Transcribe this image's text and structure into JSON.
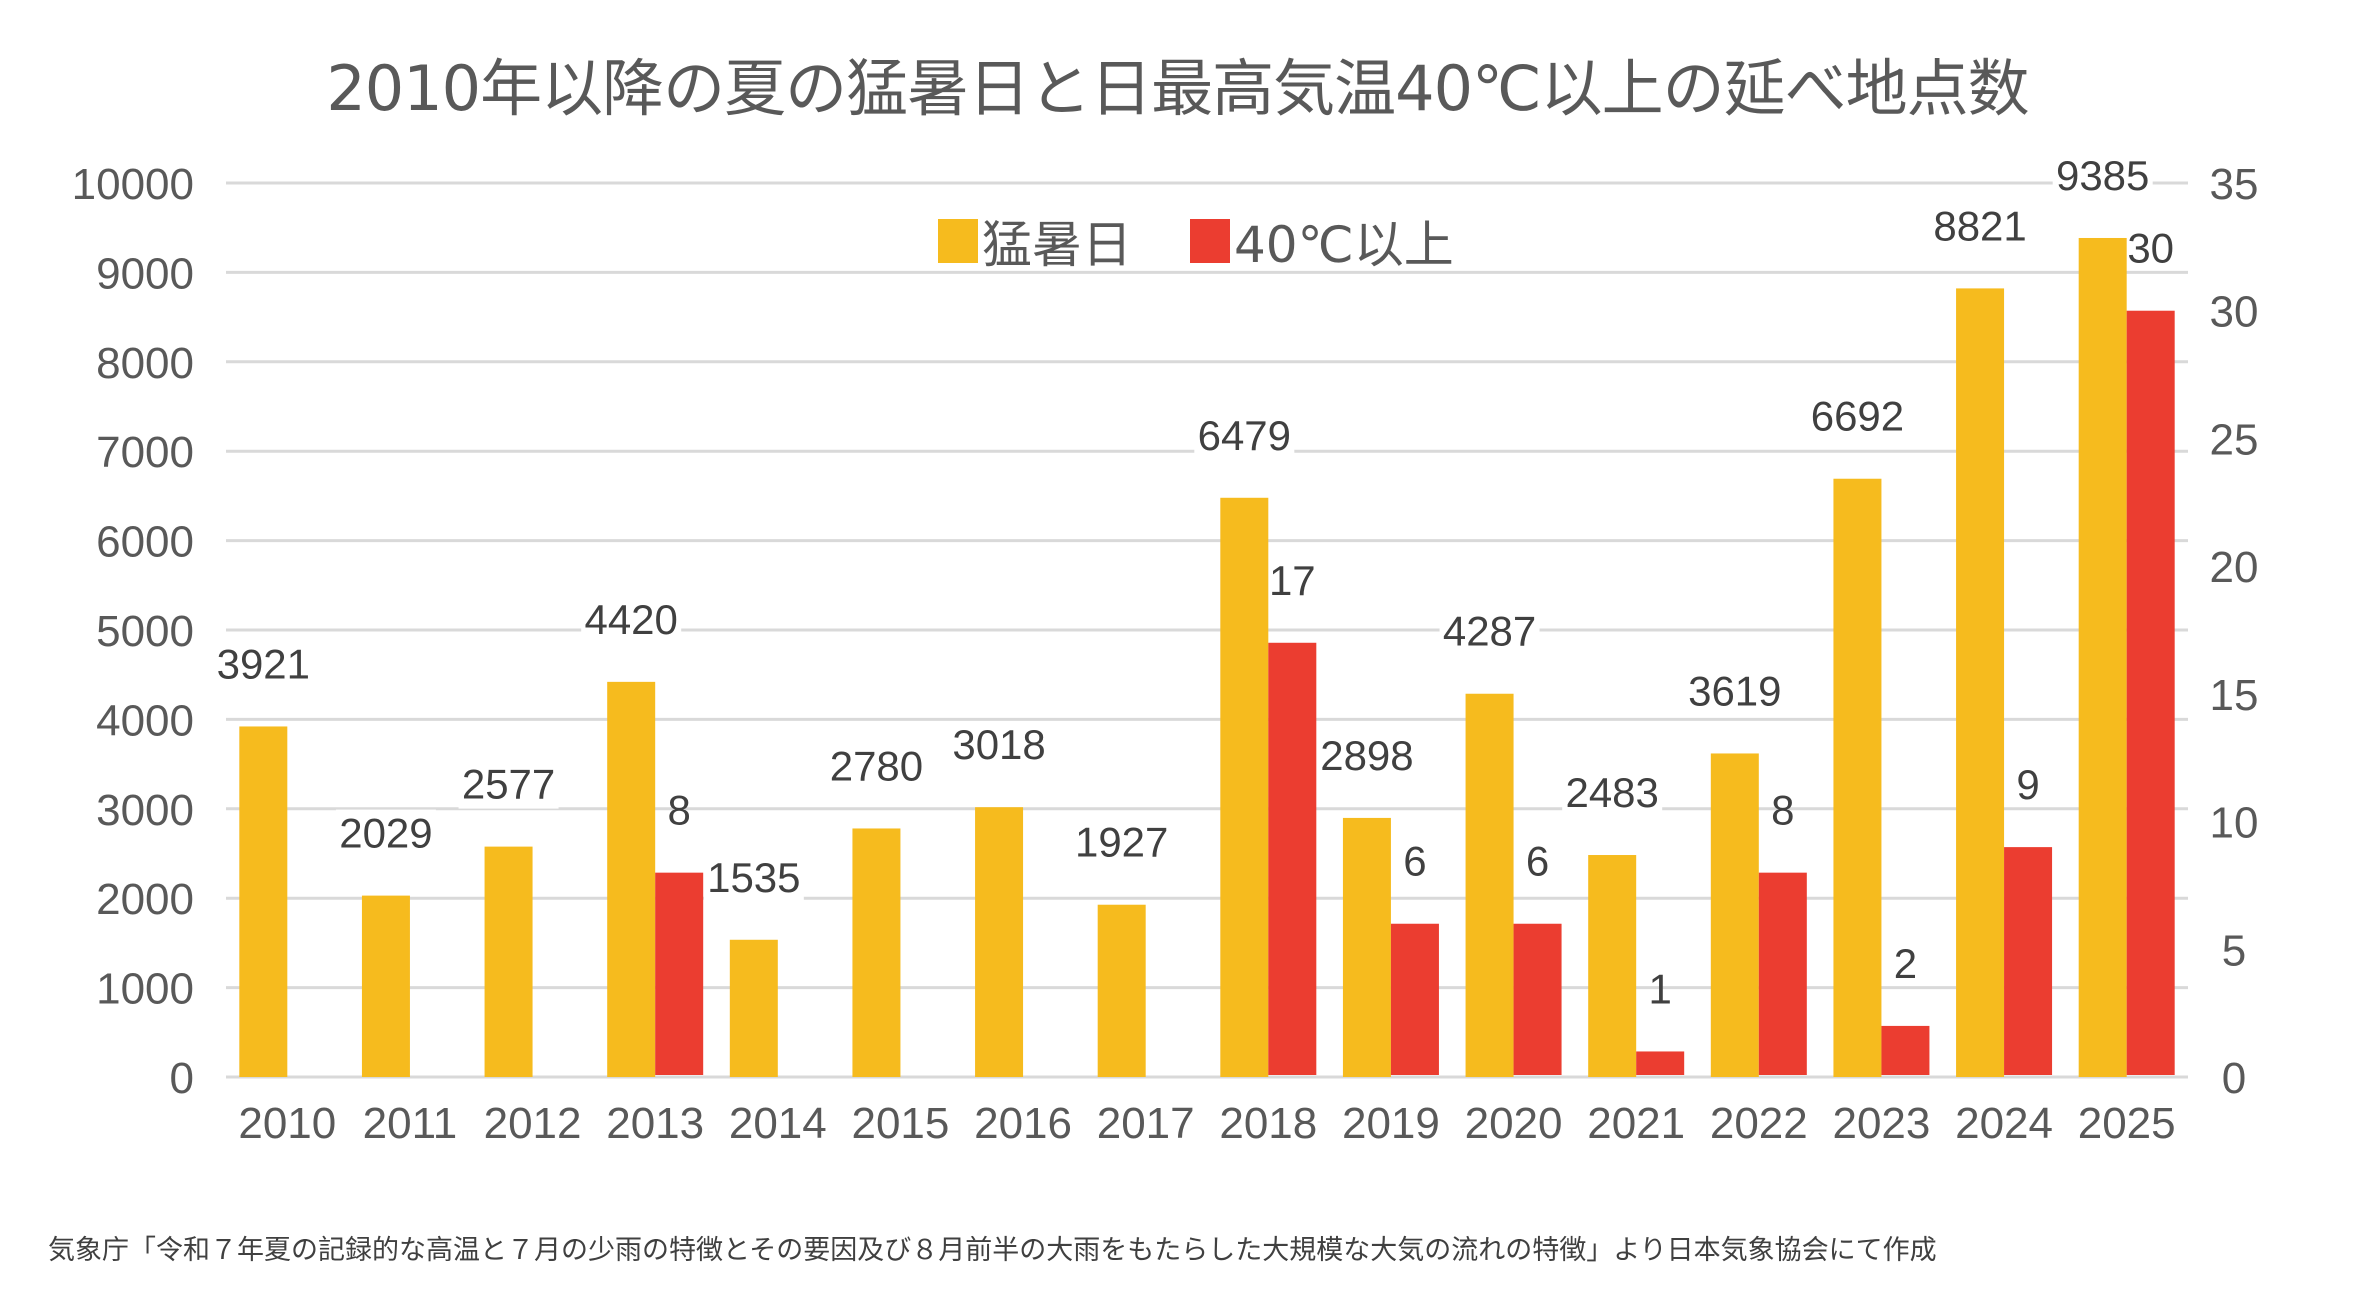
{
  "title": "2010年以降の夏の猛暑日と日最高気温40℃以上の延べ地点数",
  "footnote": "気象庁「令和７年夏の記録的な高温と７月の少雨の特徴とその要因及び８月前半の大雨をもたらした大規模な大気の流れの特徴」より日本気象協会にて作成",
  "legend": [
    {
      "label": "猛暑日",
      "color": "#F6BB1E"
    },
    {
      "label": "40℃以上",
      "color": "#EB3D30"
    }
  ],
  "chart_data": {
    "type": "bar",
    "title": "2010年以降の夏の猛暑日と日最高気温40℃以上の延べ地点数",
    "xlabel": "",
    "ylabel": "",
    "categories": [
      "2010",
      "2011",
      "2012",
      "2013",
      "2014",
      "2015",
      "2016",
      "2017",
      "2018",
      "2019",
      "2020",
      "2021",
      "2022",
      "2023",
      "2024",
      "2025"
    ],
    "series": [
      {
        "name": "猛暑日",
        "axis": "left",
        "color": "#F6BB1E",
        "values": [
          3921,
          2029,
          2577,
          4420,
          1535,
          2780,
          3018,
          1927,
          6479,
          2898,
          4287,
          2483,
          3619,
          6692,
          8821,
          9385
        ]
      },
      {
        "name": "40℃以上",
        "axis": "right",
        "color": "#EB3D30",
        "values": [
          null,
          null,
          null,
          8,
          null,
          null,
          null,
          null,
          17,
          6,
          6,
          1,
          8,
          2,
          9,
          30
        ]
      }
    ],
    "ylim_left": [
      0,
      10000
    ],
    "yticks_left": [
      0,
      1000,
      2000,
      3000,
      4000,
      5000,
      6000,
      7000,
      8000,
      9000,
      10000
    ],
    "ylim_right": [
      0,
      35
    ],
    "yticks_right": [
      0,
      5,
      10,
      15,
      20,
      25,
      30,
      35
    ],
    "grid": true,
    "legend_position": "top-center"
  }
}
